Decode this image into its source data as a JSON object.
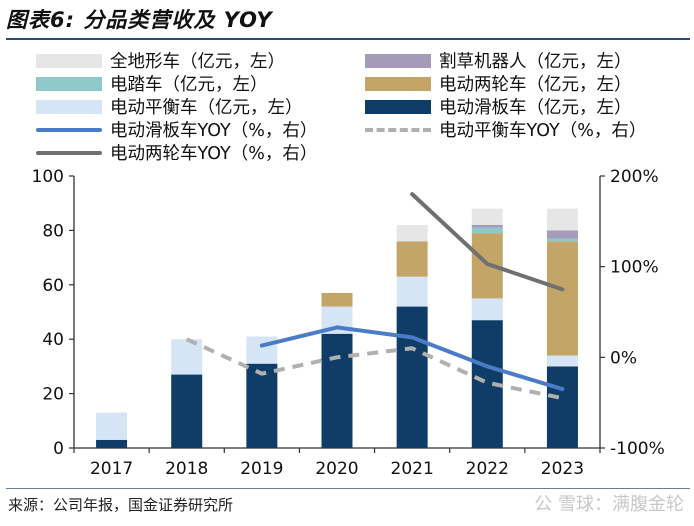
{
  "title": "图表6: 分品类营收及 YOY",
  "source": "来源：公司年报，国金证券研究所",
  "watermark": "公 雪球：满腹金轮",
  "legend": [
    {
      "label": "全地形车（亿元，左）",
      "color": "#e6e6e6",
      "kind": "box"
    },
    {
      "label": "割草机器人（亿元，左）",
      "color": "#a49bb8",
      "kind": "box"
    },
    {
      "label": "电踏车（亿元，左）",
      "color": "#8ec8c8",
      "kind": "box"
    },
    {
      "label": "电动两轮车（亿元，左）",
      "color": "#c2a567",
      "kind": "box"
    },
    {
      "label": "电动平衡车（亿元，左）",
      "color": "#d5e5f6",
      "kind": "box"
    },
    {
      "label": "电动滑板车（亿元，左）",
      "color": "#0f3d68",
      "kind": "box"
    },
    {
      "label": "电动滑板车YOY（%，右）",
      "color": "#4a7cc7",
      "kind": "line"
    },
    {
      "label": "电动平衡车YOY（%，右）",
      "color": "#b0b0b0",
      "kind": "dash"
    },
    {
      "label": "电动两轮车YOY（%，右）",
      "color": "#707070",
      "kind": "line"
    }
  ],
  "chart_data": {
    "type": "bar",
    "stacked": true,
    "categories": [
      "2017",
      "2018",
      "2019",
      "2020",
      "2021",
      "2022",
      "2023"
    ],
    "ylim": [
      0,
      100
    ],
    "yticks": [
      0,
      20,
      40,
      60,
      80,
      100
    ],
    "y2lim": [
      -100,
      200
    ],
    "y2ticks": [
      -100,
      0,
      100,
      200
    ],
    "y2tick_labels": [
      "-100%",
      "0%",
      "100%",
      "200%"
    ],
    "series": [
      {
        "name": "电动滑板车（亿元，左）",
        "color": "#0f3d68",
        "values": [
          3,
          27,
          31,
          42,
          52,
          47,
          30
        ]
      },
      {
        "name": "电动平衡车（亿元，左）",
        "color": "#d5e5f6",
        "values": [
          10,
          13,
          10,
          10,
          11,
          8,
          4
        ]
      },
      {
        "name": "电动两轮车（亿元，左）",
        "color": "#c2a567",
        "values": [
          0,
          0,
          0,
          5,
          13,
          24,
          42
        ]
      },
      {
        "name": "电踏车（亿元，左）",
        "color": "#8ec8c8",
        "values": [
          0,
          0,
          0,
          0,
          0,
          2,
          1
        ]
      },
      {
        "name": "割草机器人（亿元，左）",
        "color": "#a49bb8",
        "values": [
          0,
          0,
          0,
          0,
          0,
          1,
          3
        ]
      },
      {
        "name": "全地形车（亿元，左）",
        "color": "#e6e6e6",
        "values": [
          0,
          0,
          0,
          0,
          6,
          6,
          8
        ]
      }
    ],
    "lines": [
      {
        "name": "电动滑板车YOY（%，右）",
        "color": "#4a7cc7",
        "dashed": false,
        "values": [
          null,
          null,
          13,
          33,
          22,
          -10,
          -35
        ]
      },
      {
        "name": "电动平衡车YOY（%，右）",
        "color": "#b0b0b0",
        "dashed": true,
        "values": [
          null,
          20,
          -18,
          0,
          10,
          -28,
          -45
        ]
      },
      {
        "name": "电动两轮车YOY（%，右）",
        "color": "#707070",
        "dashed": false,
        "values": [
          null,
          null,
          null,
          null,
          180,
          103,
          75
        ]
      }
    ]
  }
}
